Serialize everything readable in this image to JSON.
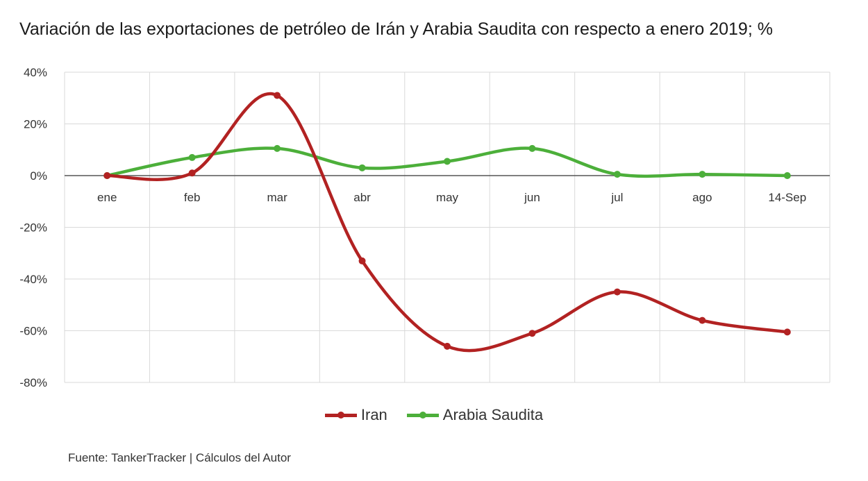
{
  "title": "Variación de las exportaciones de petróleo de Irán y Arabia Saudita con respecto a enero 2019; %",
  "source": "Fuente: TankerTracker | Cálculos del Autor",
  "chart_data": {
    "type": "line",
    "categories": [
      "ene",
      "feb",
      "mar",
      "abr",
      "may",
      "jun",
      "jul",
      "ago",
      "14-Sep"
    ],
    "series": [
      {
        "name": "Iran",
        "color": "#b22222",
        "values": [
          0,
          1,
          31,
          -33,
          -66,
          -61,
          -45,
          -56,
          -60.5
        ]
      },
      {
        "name": "Arabia Saudita",
        "color": "#4caf3a",
        "values": [
          0,
          7,
          10.5,
          3,
          5.5,
          10.5,
          0.5,
          0.5,
          0
        ]
      }
    ],
    "ylim": [
      -80,
      40
    ],
    "yticks": [
      40,
      20,
      0,
      -20,
      -40,
      -60,
      -80
    ],
    "ytick_suffix": "%",
    "grid": true,
    "smooth": true,
    "legend_position": "bottom"
  }
}
